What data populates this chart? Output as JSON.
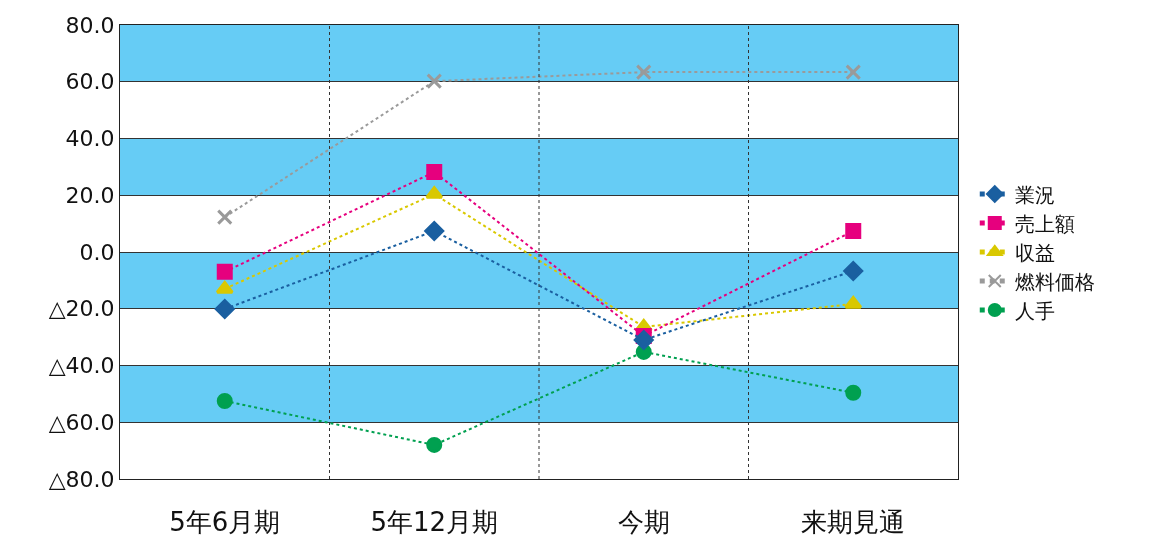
{
  "chart_data": {
    "type": "line",
    "categories": [
      "5年6月期",
      "5年12月期",
      "今期",
      "来期見通"
    ],
    "series": [
      {
        "name": "業況",
        "color": "#1a5fa0",
        "marker": "diamond",
        "values": [
          -20.1,
          7.4,
          -31.0,
          -6.7
        ]
      },
      {
        "name": "売上額",
        "color": "#e6007e",
        "marker": "square",
        "values": [
          -7.0,
          28.2,
          -29.6,
          7.4
        ]
      },
      {
        "name": "収益",
        "color": "#d9c800",
        "marker": "triangle",
        "values": [
          -13.0,
          20.4,
          -26.4,
          -18.3
        ]
      },
      {
        "name": "燃料価格",
        "color": "#9a9a9a",
        "marker": "cross",
        "values": [
          12.3,
          60.2,
          63.4,
          63.4
        ]
      },
      {
        "name": "人手",
        "color": "#00a050",
        "marker": "circle",
        "values": [
          -52.5,
          -68.0,
          -35.2,
          -49.6
        ]
      }
    ],
    "ylim": [
      -80,
      80
    ],
    "yticks": [
      {
        "value": -80,
        "label": "△80.0"
      },
      {
        "value": -60,
        "label": "△60.0"
      },
      {
        "value": -40,
        "label": "△40.0"
      },
      {
        "value": -20,
        "label": "△20.0"
      },
      {
        "value": 0,
        "label": "0.0"
      },
      {
        "value": 20,
        "label": "20.0"
      },
      {
        "value": 40,
        "label": "40.0"
      },
      {
        "value": 60,
        "label": "60.0"
      },
      {
        "value": 80,
        "label": "80.0"
      }
    ],
    "bands": [
      {
        "axis": "y",
        "from": 60,
        "to": 80,
        "color": "#66ccf5"
      },
      {
        "axis": "y",
        "from": 20,
        "to": 40,
        "color": "#66ccf5"
      },
      {
        "axis": "y",
        "from": -20,
        "to": 0,
        "color": "#66ccf5"
      },
      {
        "axis": "y",
        "from": -60,
        "to": -40,
        "color": "#66ccf5"
      }
    ],
    "grid": true,
    "legend": "right",
    "line_style": "dotted"
  }
}
